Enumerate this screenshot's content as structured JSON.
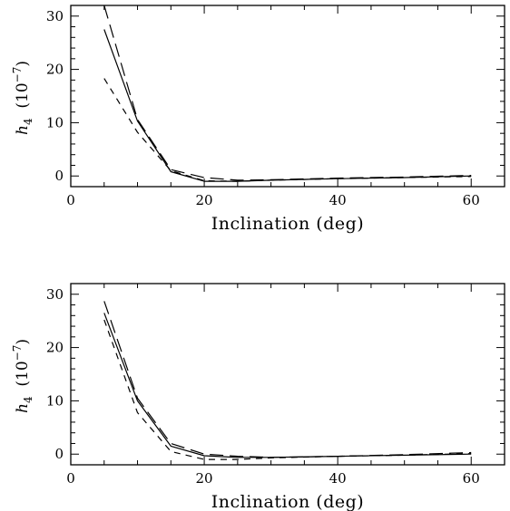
{
  "chart_data": [
    {
      "type": "line",
      "xlabel": "Inclination (deg)",
      "ylabel": {
        "symbol": "h",
        "subscript": "4",
        "units_prefix": "(10",
        "units_exp": "−7",
        "units_suffix": ")"
      },
      "xlim": [
        0,
        65
      ],
      "ylim": [
        -2,
        32
      ],
      "xticks_major": [
        0,
        20,
        40,
        60
      ],
      "yticks_major": [
        0,
        10,
        20,
        30
      ],
      "series": [
        {
          "style": "solid",
          "x": [
            5,
            10,
            15,
            20,
            25,
            30,
            40,
            50,
            60
          ],
          "y": [
            27.5,
            10.3,
            0.8,
            -1.0,
            -1.0,
            -0.8,
            -0.5,
            -0.3,
            0.0
          ]
        },
        {
          "style": "long-dash",
          "x": [
            5,
            10,
            15,
            20,
            25,
            30,
            40,
            50,
            60
          ],
          "y": [
            32.0,
            10.6,
            1.2,
            -0.3,
            -0.8,
            -0.7,
            -0.4,
            -0.2,
            0.1
          ]
        },
        {
          "style": "short-dash",
          "x": [
            5,
            10,
            15,
            20,
            25,
            30,
            40,
            50,
            60
          ],
          "y": [
            18.3,
            8.2,
            1.0,
            -0.9,
            -1.0,
            -0.8,
            -0.5,
            -0.3,
            -0.1
          ]
        }
      ]
    },
    {
      "type": "line",
      "xlabel": "Inclination (deg)",
      "ylabel": {
        "symbol": "h",
        "subscript": "4",
        "units_prefix": "(10",
        "units_exp": "−7",
        "units_suffix": ")"
      },
      "xlim": [
        0,
        65
      ],
      "ylim": [
        -2,
        32
      ],
      "xticks_major": [
        0,
        20,
        40,
        60
      ],
      "yticks_major": [
        0,
        10,
        20,
        30
      ],
      "series": [
        {
          "style": "solid",
          "x": [
            5,
            10,
            15,
            20,
            25,
            30,
            40,
            50,
            60
          ],
          "y": [
            26.5,
            10.0,
            1.5,
            -0.3,
            -0.6,
            -0.6,
            -0.4,
            -0.2,
            0.0
          ]
        },
        {
          "style": "long-dash",
          "x": [
            5,
            10,
            15,
            20,
            25,
            30,
            40,
            50,
            60
          ],
          "y": [
            28.7,
            10.5,
            2.0,
            0.0,
            -0.4,
            -0.6,
            -0.4,
            -0.1,
            0.3
          ]
        },
        {
          "style": "short-dash",
          "x": [
            5,
            10,
            15,
            20,
            25,
            30,
            40,
            50,
            60
          ],
          "y": [
            25.2,
            7.8,
            0.5,
            -1.0,
            -1.0,
            -0.7,
            -0.4,
            -0.2,
            0.1
          ]
        }
      ]
    }
  ]
}
